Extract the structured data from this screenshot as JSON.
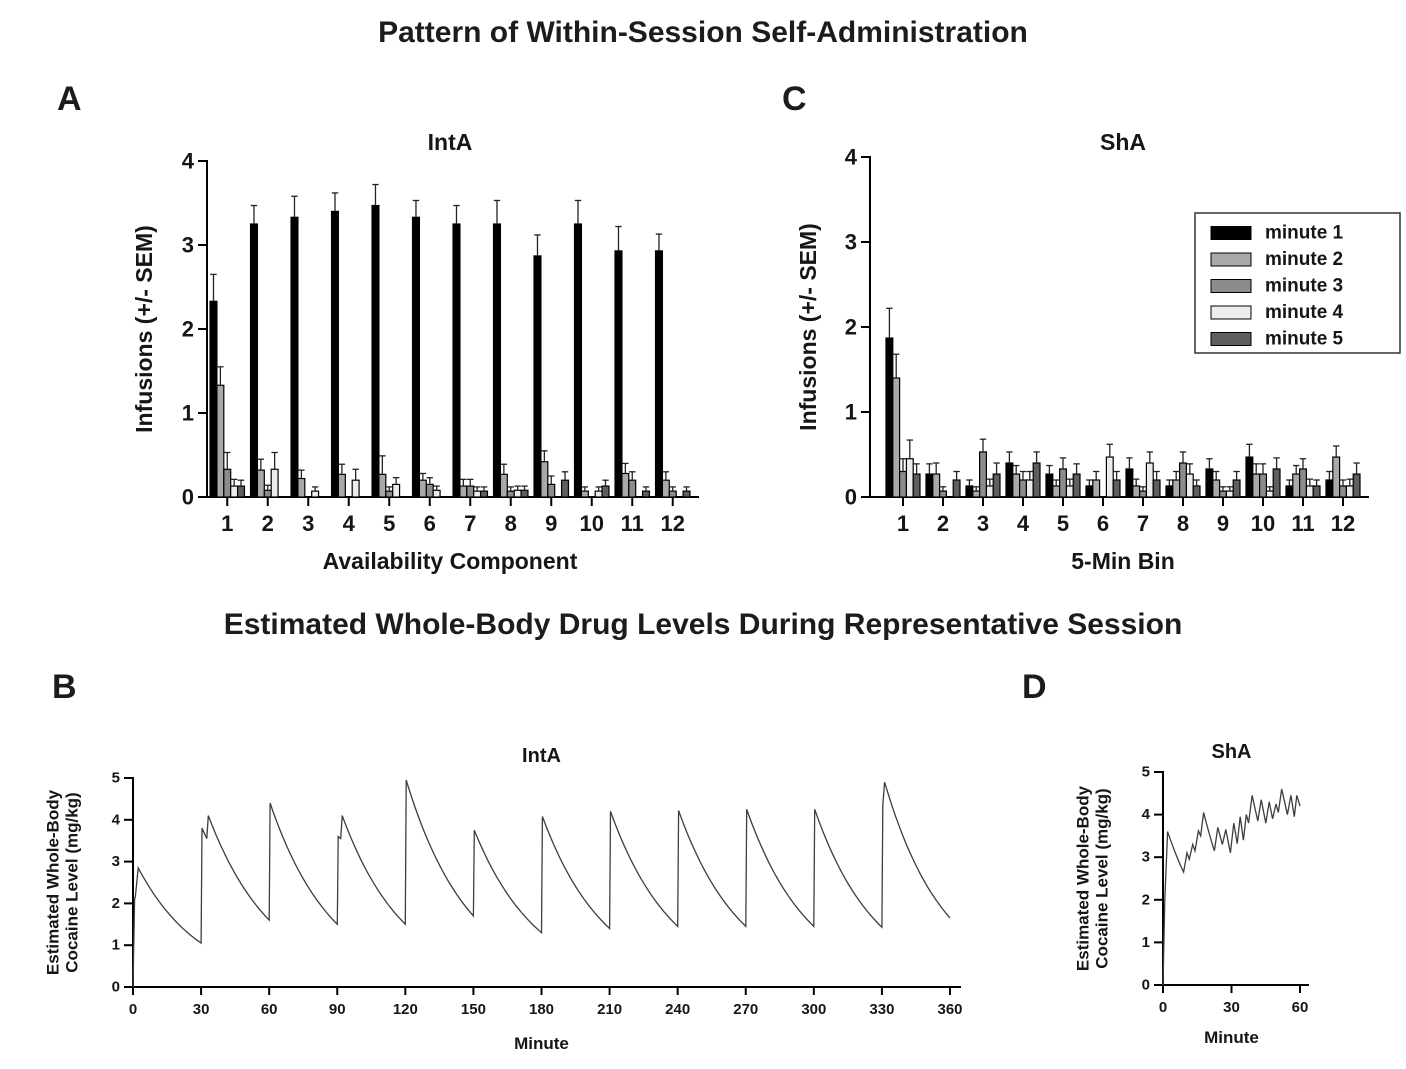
{
  "page": {
    "title1": "Pattern of Within-Session Self-Administration",
    "title2": "Estimated Whole-Body Drug Levels During Representative Session"
  },
  "panels": {
    "a": "A",
    "b": "B",
    "c": "C",
    "d": "D"
  },
  "colors": {
    "minute1": "#000000",
    "minute2": "#a9a9a9",
    "minute3": "#8c8c8c",
    "minute4": "#ececec",
    "minute5": "#5f5f5f",
    "curve": "#3d3d3d",
    "axis": "#000000"
  },
  "chart_data": [
    {
      "id": "A",
      "type": "bar",
      "title": "IntA",
      "xlabel": "Availability Component",
      "ylabel": "Infusions (+/- SEM)",
      "categories": [
        "1",
        "2",
        "3",
        "4",
        "5",
        "6",
        "7",
        "8",
        "9",
        "10",
        "11",
        "12"
      ],
      "yticks": [
        0,
        1,
        2,
        3,
        4
      ],
      "ylim": [
        0,
        4
      ],
      "grid": false,
      "legend": false,
      "series": [
        {
          "name": "minute 1",
          "color": "#000000",
          "values": [
            2.33,
            3.25,
            3.33,
            3.4,
            3.47,
            3.33,
            3.25,
            3.25,
            2.87,
            3.25,
            2.93,
            2.93
          ],
          "errors": [
            0.32,
            0.22,
            0.25,
            0.22,
            0.25,
            0.2,
            0.22,
            0.28,
            0.25,
            0.28,
            0.29,
            0.2
          ]
        },
        {
          "name": "minute 2",
          "color": "#a9a9a9",
          "values": [
            1.33,
            0.32,
            0.22,
            0.27,
            0.27,
            0.2,
            0.13,
            0.27,
            0.42,
            0.07,
            0.28,
            0.2
          ],
          "errors": [
            0.22,
            0.13,
            0.1,
            0.12,
            0.22,
            0.08,
            0.08,
            0.12,
            0.13,
            0.05,
            0.12,
            0.1
          ]
        },
        {
          "name": "minute 3",
          "color": "#8c8c8c",
          "values": [
            0.33,
            0.08,
            0.0,
            0.0,
            0.07,
            0.15,
            0.13,
            0.07,
            0.15,
            0.0,
            0.2,
            0.07
          ],
          "errors": [
            0.2,
            0.06,
            0.0,
            0.0,
            0.05,
            0.08,
            0.08,
            0.05,
            0.1,
            0.0,
            0.1,
            0.05
          ]
        },
        {
          "name": "minute 4",
          "color": "#ececec",
          "values": [
            0.13,
            0.33,
            0.07,
            0.2,
            0.15,
            0.08,
            0.07,
            0.08,
            0.0,
            0.07,
            0.0,
            0.0
          ],
          "errors": [
            0.08,
            0.2,
            0.05,
            0.13,
            0.08,
            0.05,
            0.05,
            0.05,
            0.0,
            0.05,
            0.0,
            0.0
          ]
        },
        {
          "name": "minute 5",
          "color": "#5f5f5f",
          "values": [
            0.13,
            0.0,
            0.0,
            0.0,
            0.0,
            0.0,
            0.07,
            0.08,
            0.2,
            0.13,
            0.07,
            0.07
          ],
          "errors": [
            0.07,
            0.0,
            0.0,
            0.0,
            0.0,
            0.0,
            0.05,
            0.05,
            0.1,
            0.07,
            0.05,
            0.05
          ]
        }
      ]
    },
    {
      "id": "C",
      "type": "bar",
      "title": "ShA",
      "xlabel": "5-Min Bin",
      "ylabel": "Infusions (+/- SEM)",
      "categories": [
        "1",
        "2",
        "3",
        "4",
        "5",
        "6",
        "7",
        "8",
        "9",
        "10",
        "11",
        "12"
      ],
      "yticks": [
        0,
        1,
        2,
        3,
        4
      ],
      "ylim": [
        0,
        4
      ],
      "grid": false,
      "legend": true,
      "series": [
        {
          "name": "minute 1",
          "color": "#000000",
          "values": [
            1.87,
            0.27,
            0.13,
            0.4,
            0.27,
            0.13,
            0.33,
            0.13,
            0.33,
            0.47,
            0.13,
            0.2
          ],
          "errors": [
            0.35,
            0.12,
            0.07,
            0.13,
            0.1,
            0.07,
            0.13,
            0.07,
            0.12,
            0.15,
            0.07,
            0.1
          ]
        },
        {
          "name": "minute 2",
          "color": "#a9a9a9",
          "values": [
            1.4,
            0.27,
            0.07,
            0.27,
            0.13,
            0.2,
            0.13,
            0.2,
            0.2,
            0.27,
            0.27,
            0.47
          ],
          "errors": [
            0.28,
            0.13,
            0.05,
            0.1,
            0.07,
            0.1,
            0.08,
            0.1,
            0.1,
            0.12,
            0.1,
            0.13
          ]
        },
        {
          "name": "minute 3",
          "color": "#8c8c8c",
          "values": [
            0.3,
            0.07,
            0.53,
            0.2,
            0.33,
            0.0,
            0.07,
            0.4,
            0.07,
            0.27,
            0.33,
            0.13
          ],
          "errors": [
            0.15,
            0.05,
            0.15,
            0.1,
            0.13,
            0.0,
            0.05,
            0.13,
            0.05,
            0.12,
            0.12,
            0.07
          ]
        },
        {
          "name": "minute 4",
          "color": "#ececec",
          "values": [
            0.45,
            0.0,
            0.13,
            0.2,
            0.13,
            0.47,
            0.4,
            0.27,
            0.07,
            0.07,
            0.13,
            0.13
          ],
          "errors": [
            0.22,
            0.0,
            0.08,
            0.1,
            0.08,
            0.15,
            0.13,
            0.12,
            0.05,
            0.05,
            0.08,
            0.08
          ]
        },
        {
          "name": "minute 5",
          "color": "#5f5f5f",
          "values": [
            0.27,
            0.2,
            0.27,
            0.4,
            0.27,
            0.2,
            0.2,
            0.13,
            0.2,
            0.33,
            0.13,
            0.27
          ],
          "errors": [
            0.12,
            0.1,
            0.13,
            0.13,
            0.12,
            0.1,
            0.1,
            0.07,
            0.1,
            0.13,
            0.07,
            0.13
          ]
        }
      ]
    },
    {
      "id": "B",
      "type": "line",
      "title": "IntA",
      "xlabel": "Minute",
      "ylabel": [
        "Estimated Whole-Body",
        "Cocaine Level (mg/kg)"
      ],
      "xticks": [
        0,
        30,
        60,
        90,
        120,
        150,
        180,
        210,
        240,
        270,
        300,
        330,
        360
      ],
      "yticks": [
        0,
        1,
        2,
        3,
        4,
        5
      ],
      "xlim": [
        0,
        360
      ],
      "ylim": [
        0,
        5
      ],
      "grid": false,
      "points": [
        [
          0,
          0
        ],
        [
          0.7,
          2.1
        ],
        [
          1.0,
          2.15
        ],
        [
          2.3,
          2.85
        ],
        [
          30,
          1.05
        ],
        [
          30.4,
          3.8
        ],
        [
          32.5,
          3.55
        ],
        [
          33.2,
          4.1
        ],
        [
          60,
          1.6
        ],
        [
          60.4,
          4.4
        ],
        [
          90,
          1.5
        ],
        [
          90.4,
          3.6
        ],
        [
          91.5,
          3.55
        ],
        [
          92.2,
          4.1
        ],
        [
          120,
          1.5
        ],
        [
          120.4,
          4.95
        ],
        [
          150,
          1.7
        ],
        [
          150.4,
          3.75
        ],
        [
          180,
          1.3
        ],
        [
          180.4,
          4.08
        ],
        [
          210,
          1.4
        ],
        [
          210.4,
          4.2
        ],
        [
          240,
          1.45
        ],
        [
          240.4,
          4.22
        ],
        [
          270,
          1.45
        ],
        [
          270.4,
          4.25
        ],
        [
          300,
          1.45
        ],
        [
          300.4,
          4.25
        ],
        [
          330,
          1.43
        ],
        [
          330.4,
          4.35
        ],
        [
          331.2,
          4.9
        ],
        [
          360,
          1.65
        ]
      ]
    },
    {
      "id": "D",
      "type": "line",
      "title": "ShA",
      "xlabel": "Minute",
      "ylabel": [
        "Estimated Whole-Body",
        "Cocaine Level (mg/kg)"
      ],
      "xticks": [
        0,
        30,
        60
      ],
      "yticks": [
        0,
        1,
        2,
        3,
        4,
        5
      ],
      "xlim": [
        0,
        60
      ],
      "ylim": [
        0,
        5
      ],
      "grid": false,
      "points": [
        [
          0,
          0
        ],
        [
          0.8,
          2.0
        ],
        [
          2,
          3.6
        ],
        [
          9,
          2.65
        ],
        [
          10.5,
          3.1
        ],
        [
          11.5,
          2.95
        ],
        [
          13,
          3.3
        ],
        [
          14,
          3.15
        ],
        [
          15.5,
          3.62
        ],
        [
          16.5,
          3.5
        ],
        [
          17.8,
          4.05
        ],
        [
          22.5,
          3.15
        ],
        [
          24,
          3.7
        ],
        [
          26,
          3.3
        ],
        [
          27.5,
          3.65
        ],
        [
          29.5,
          3.1
        ],
        [
          31,
          3.8
        ],
        [
          32.5,
          3.32
        ],
        [
          33.8,
          3.95
        ],
        [
          35.2,
          3.4
        ],
        [
          36.5,
          4.0
        ],
        [
          37.5,
          3.8
        ],
        [
          39,
          4.45
        ],
        [
          41.5,
          3.85
        ],
        [
          43,
          4.35
        ],
        [
          45,
          3.8
        ],
        [
          46.5,
          4.3
        ],
        [
          48,
          3.9
        ],
        [
          49.5,
          4.25
        ],
        [
          50.5,
          4.05
        ],
        [
          52,
          4.6
        ],
        [
          54.5,
          4.0
        ],
        [
          56,
          4.45
        ],
        [
          57.5,
          3.95
        ],
        [
          58.6,
          4.45
        ],
        [
          60,
          4.2
        ]
      ]
    }
  ]
}
